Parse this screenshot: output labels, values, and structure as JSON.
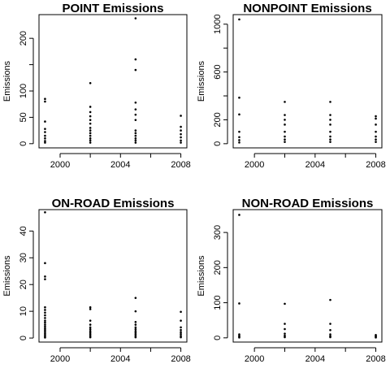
{
  "chart_data": [
    {
      "type": "scatter",
      "title": "POINT Emissions",
      "xlabel": "",
      "ylabel": "Emissions",
      "xlim": [
        1998.6,
        2008.4
      ],
      "ylim": [
        -8,
        245
      ],
      "xticks": [
        2000,
        2002,
        2004,
        2006,
        2008
      ],
      "xtick_labels": [
        "2000",
        "",
        "2004",
        "",
        "2008"
      ],
      "yticks": [
        0,
        50,
        100,
        150,
        200
      ],
      "ytick_labels": [
        "0",
        "50",
        "100",
        "",
        "200"
      ],
      "points": [
        {
          "x": 1999,
          "y": 85
        },
        {
          "x": 1999,
          "y": 80
        },
        {
          "x": 1999,
          "y": 42
        },
        {
          "x": 1999,
          "y": 28
        },
        {
          "x": 1999,
          "y": 22
        },
        {
          "x": 1999,
          "y": 15
        },
        {
          "x": 1999,
          "y": 10
        },
        {
          "x": 1999,
          "y": 5
        },
        {
          "x": 1999,
          "y": 2
        },
        {
          "x": 2002,
          "y": 115
        },
        {
          "x": 2002,
          "y": 70
        },
        {
          "x": 2002,
          "y": 60
        },
        {
          "x": 2002,
          "y": 52
        },
        {
          "x": 2002,
          "y": 45
        },
        {
          "x": 2002,
          "y": 38
        },
        {
          "x": 2002,
          "y": 30
        },
        {
          "x": 2002,
          "y": 25
        },
        {
          "x": 2002,
          "y": 20
        },
        {
          "x": 2002,
          "y": 15
        },
        {
          "x": 2002,
          "y": 10
        },
        {
          "x": 2002,
          "y": 6
        },
        {
          "x": 2002,
          "y": 2
        },
        {
          "x": 2005,
          "y": 238
        },
        {
          "x": 2005,
          "y": 160
        },
        {
          "x": 2005,
          "y": 140
        },
        {
          "x": 2005,
          "y": 78
        },
        {
          "x": 2005,
          "y": 65
        },
        {
          "x": 2005,
          "y": 55
        },
        {
          "x": 2005,
          "y": 45
        },
        {
          "x": 2005,
          "y": 25
        },
        {
          "x": 2005,
          "y": 20
        },
        {
          "x": 2005,
          "y": 15
        },
        {
          "x": 2005,
          "y": 10
        },
        {
          "x": 2005,
          "y": 6
        },
        {
          "x": 2005,
          "y": 2
        },
        {
          "x": 2008,
          "y": 53
        },
        {
          "x": 2008,
          "y": 32
        },
        {
          "x": 2008,
          "y": 25
        },
        {
          "x": 2008,
          "y": 18
        },
        {
          "x": 2008,
          "y": 12
        },
        {
          "x": 2008,
          "y": 6
        },
        {
          "x": 2008,
          "y": 2
        }
      ]
    },
    {
      "type": "scatter",
      "title": "NONPOINT Emissions",
      "xlabel": "",
      "ylabel": "Emissions",
      "xlim": [
        1998.6,
        2008.4
      ],
      "ylim": [
        -35,
        1080
      ],
      "xticks": [
        2000,
        2002,
        2004,
        2006,
        2008
      ],
      "xtick_labels": [
        "2000",
        "",
        "2004",
        "",
        "2008"
      ],
      "yticks": [
        0,
        200,
        400,
        600,
        800,
        1000
      ],
      "ytick_labels": [
        "0",
        "200",
        "",
        "600",
        "",
        "1000"
      ],
      "points": [
        {
          "x": 1999,
          "y": 1040
        },
        {
          "x": 1999,
          "y": 385
        },
        {
          "x": 1999,
          "y": 245
        },
        {
          "x": 1999,
          "y": 100
        },
        {
          "x": 1999,
          "y": 55
        },
        {
          "x": 1999,
          "y": 30
        },
        {
          "x": 1999,
          "y": 10
        },
        {
          "x": 2002,
          "y": 350
        },
        {
          "x": 2002,
          "y": 240
        },
        {
          "x": 2002,
          "y": 200
        },
        {
          "x": 2002,
          "y": 160
        },
        {
          "x": 2002,
          "y": 100
        },
        {
          "x": 2002,
          "y": 60
        },
        {
          "x": 2002,
          "y": 35
        },
        {
          "x": 2002,
          "y": 15
        },
        {
          "x": 2005,
          "y": 350
        },
        {
          "x": 2005,
          "y": 240
        },
        {
          "x": 2005,
          "y": 200
        },
        {
          "x": 2005,
          "y": 160
        },
        {
          "x": 2005,
          "y": 100
        },
        {
          "x": 2005,
          "y": 60
        },
        {
          "x": 2005,
          "y": 35
        },
        {
          "x": 2005,
          "y": 15
        },
        {
          "x": 2008,
          "y": 230
        },
        {
          "x": 2008,
          "y": 210
        },
        {
          "x": 2008,
          "y": 160
        },
        {
          "x": 2008,
          "y": 100
        },
        {
          "x": 2008,
          "y": 60
        },
        {
          "x": 2008,
          "y": 35
        },
        {
          "x": 2008,
          "y": 15
        }
      ]
    },
    {
      "type": "scatter",
      "title": "ON-ROAD Emissions",
      "xlabel": "",
      "ylabel": "Emissions",
      "xlim": [
        1998.6,
        2008.4
      ],
      "ylim": [
        -1.5,
        48
      ],
      "xticks": [
        2000,
        2002,
        2004,
        2006,
        2008
      ],
      "xtick_labels": [
        "2000",
        "",
        "2004",
        "",
        "2008"
      ],
      "yticks": [
        0,
        10,
        20,
        30,
        40
      ],
      "ytick_labels": [
        "0",
        "10",
        "20",
        "30",
        "40"
      ],
      "points": [
        {
          "x": 1999,
          "y": 47
        },
        {
          "x": 1999,
          "y": 28
        },
        {
          "x": 1999,
          "y": 23
        },
        {
          "x": 1999,
          "y": 22
        },
        {
          "x": 1999,
          "y": 11.5
        },
        {
          "x": 1999,
          "y": 10.5
        },
        {
          "x": 1999,
          "y": 9.5
        },
        {
          "x": 1999,
          "y": 8.5
        },
        {
          "x": 1999,
          "y": 7.5
        },
        {
          "x": 1999,
          "y": 6.5
        },
        {
          "x": 1999,
          "y": 5.8
        },
        {
          "x": 1999,
          "y": 5
        },
        {
          "x": 1999,
          "y": 4.3
        },
        {
          "x": 1999,
          "y": 3.6
        },
        {
          "x": 1999,
          "y": 3
        },
        {
          "x": 1999,
          "y": 2.4
        },
        {
          "x": 1999,
          "y": 1.8
        },
        {
          "x": 1999,
          "y": 1.2
        },
        {
          "x": 1999,
          "y": 0.6
        },
        {
          "x": 1999,
          "y": 0.2
        },
        {
          "x": 2002,
          "y": 11.5
        },
        {
          "x": 2002,
          "y": 10.8
        },
        {
          "x": 2002,
          "y": 6.5
        },
        {
          "x": 2002,
          "y": 5
        },
        {
          "x": 2002,
          "y": 4
        },
        {
          "x": 2002,
          "y": 3.3
        },
        {
          "x": 2002,
          "y": 2.6
        },
        {
          "x": 2002,
          "y": 2
        },
        {
          "x": 2002,
          "y": 1.4
        },
        {
          "x": 2002,
          "y": 0.8
        },
        {
          "x": 2002,
          "y": 0.3
        },
        {
          "x": 2005,
          "y": 15
        },
        {
          "x": 2005,
          "y": 10
        },
        {
          "x": 2005,
          "y": 6
        },
        {
          "x": 2005,
          "y": 5
        },
        {
          "x": 2005,
          "y": 4
        },
        {
          "x": 2005,
          "y": 3.3
        },
        {
          "x": 2005,
          "y": 2.6
        },
        {
          "x": 2005,
          "y": 2
        },
        {
          "x": 2005,
          "y": 1.4
        },
        {
          "x": 2005,
          "y": 0.8
        },
        {
          "x": 2005,
          "y": 0.3
        },
        {
          "x": 2008,
          "y": 9.8
        },
        {
          "x": 2008,
          "y": 6.5
        },
        {
          "x": 2008,
          "y": 4
        },
        {
          "x": 2008,
          "y": 3
        },
        {
          "x": 2008,
          "y": 2.2
        },
        {
          "x": 2008,
          "y": 1.5
        },
        {
          "x": 2008,
          "y": 0.8
        },
        {
          "x": 2008,
          "y": 0.3
        }
      ]
    },
    {
      "type": "scatter",
      "title": "NON-ROAD Emissions",
      "xlabel": "",
      "ylabel": "Emissions",
      "xlim": [
        1998.6,
        2008.4
      ],
      "ylim": [
        -12,
        365
      ],
      "xticks": [
        2000,
        2002,
        2004,
        2006,
        2008
      ],
      "xtick_labels": [
        "2000",
        "",
        "2004",
        "",
        "2008"
      ],
      "yticks": [
        0,
        100,
        200,
        300
      ],
      "ytick_labels": [
        "0",
        "100",
        "200",
        "300"
      ],
      "points": [
        {
          "x": 1999,
          "y": 350
        },
        {
          "x": 1999,
          "y": 98
        },
        {
          "x": 1999,
          "y": 10
        },
        {
          "x": 1999,
          "y": 6
        },
        {
          "x": 1999,
          "y": 3
        },
        {
          "x": 1999,
          "y": 1
        },
        {
          "x": 2002,
          "y": 97
        },
        {
          "x": 2002,
          "y": 40
        },
        {
          "x": 2002,
          "y": 25
        },
        {
          "x": 2002,
          "y": 12
        },
        {
          "x": 2002,
          "y": 6
        },
        {
          "x": 2002,
          "y": 2
        },
        {
          "x": 2005,
          "y": 108
        },
        {
          "x": 2005,
          "y": 40
        },
        {
          "x": 2005,
          "y": 22
        },
        {
          "x": 2005,
          "y": 10
        },
        {
          "x": 2005,
          "y": 5
        },
        {
          "x": 2005,
          "y": 2
        },
        {
          "x": 2008,
          "y": 8
        },
        {
          "x": 2008,
          "y": 5
        },
        {
          "x": 2008,
          "y": 3
        },
        {
          "x": 2008,
          "y": 1
        }
      ]
    }
  ]
}
